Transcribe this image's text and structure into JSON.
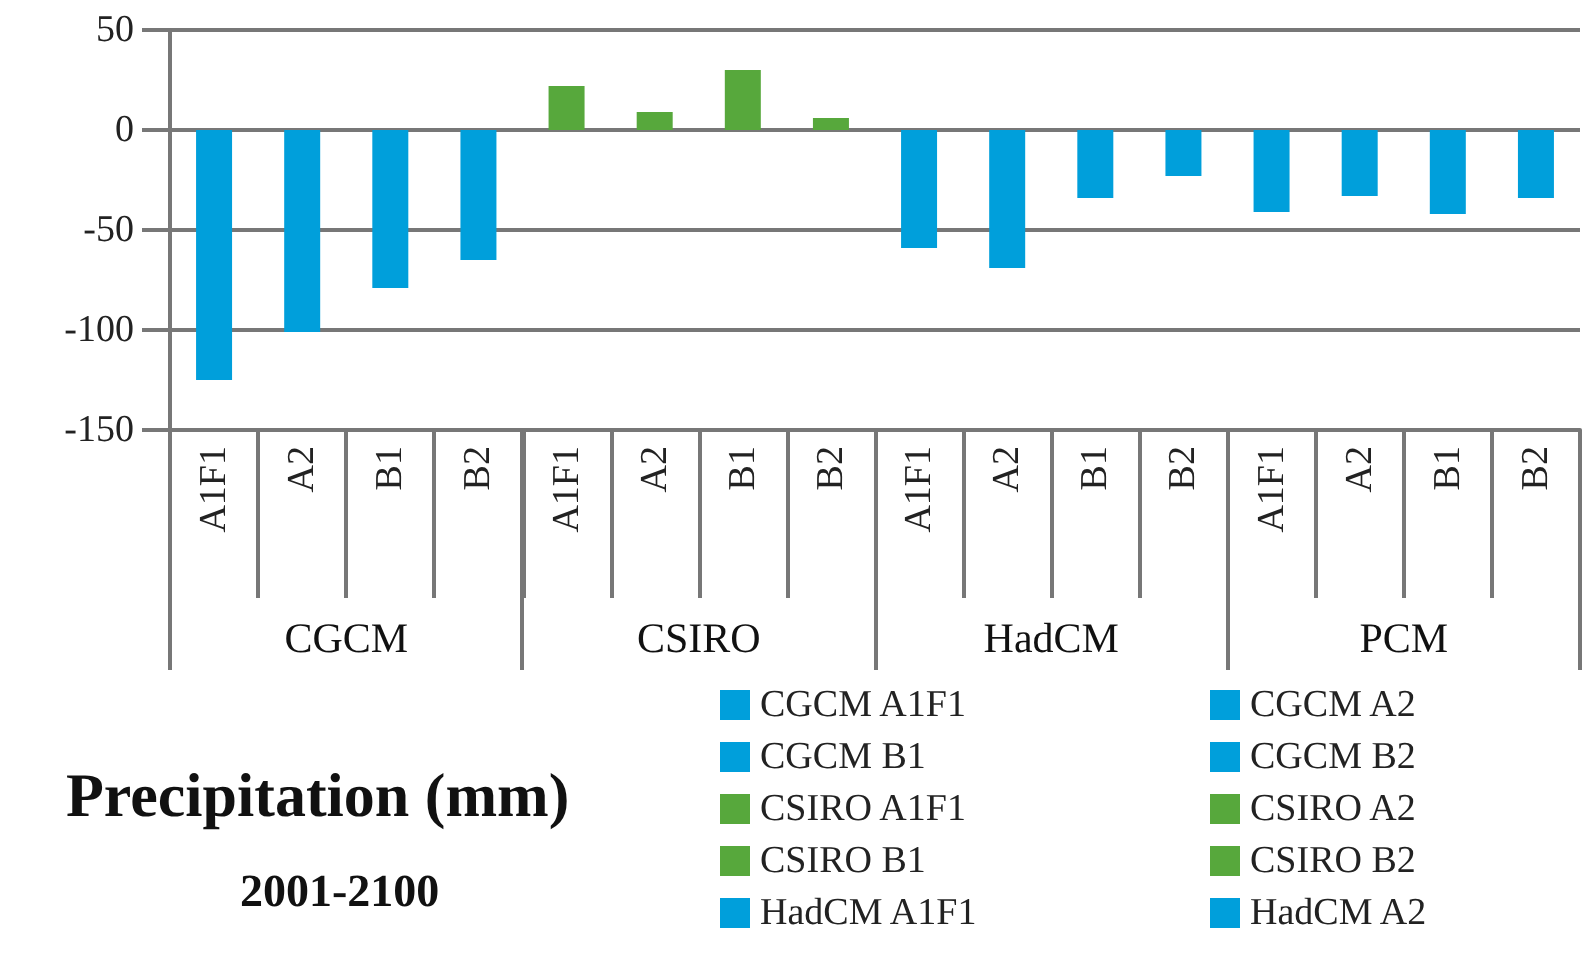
{
  "chart_data": {
    "type": "bar",
    "title": "Precipitation (mm)",
    "subtitle": "2001-2100",
    "categories": [
      "A1F1",
      "A2",
      "B1",
      "B2",
      "A1F1",
      "A2",
      "B1",
      "B2",
      "A1F1",
      "A2",
      "B1",
      "B2",
      "A1F1",
      "A2",
      "B1",
      "B2"
    ],
    "annotations": [
      "CGCM",
      "CSIRO",
      "HadCM",
      "PCM"
    ],
    "stacked": true,
    "series": [
      {
        "name": "CGCM A1F1",
        "color": "#009fdb",
        "values": [
          -125,
          null,
          null,
          null,
          null,
          null,
          null,
          null,
          null,
          null,
          null,
          null,
          null,
          null,
          null,
          null
        ]
      },
      {
        "name": "CGCM A2",
        "color": "#009fdb",
        "values": [
          null,
          -101,
          null,
          null,
          null,
          null,
          null,
          null,
          null,
          null,
          null,
          null,
          null,
          null,
          null,
          null
        ]
      },
      {
        "name": "CGCM B1",
        "color": "#009fdb",
        "values": [
          null,
          null,
          -79,
          null,
          null,
          null,
          null,
          null,
          null,
          null,
          null,
          null,
          null,
          null,
          null,
          null
        ]
      },
      {
        "name": "CGCM B2",
        "color": "#009fdb",
        "values": [
          null,
          null,
          null,
          -65,
          null,
          null,
          null,
          null,
          null,
          null,
          null,
          null,
          null,
          null,
          null,
          null
        ]
      },
      {
        "name": "CSIRO A1F1",
        "color": "#57a83c",
        "values": [
          null,
          null,
          null,
          null,
          22,
          null,
          null,
          null,
          null,
          null,
          null,
          null,
          null,
          null,
          null,
          null
        ]
      },
      {
        "name": "CSIRO A2",
        "color": "#57a83c",
        "values": [
          null,
          null,
          null,
          null,
          null,
          9,
          null,
          null,
          null,
          null,
          null,
          null,
          null,
          null,
          null,
          null
        ]
      },
      {
        "name": "CSIRO B1",
        "color": "#57a83c",
        "values": [
          null,
          null,
          null,
          null,
          null,
          null,
          30,
          null,
          null,
          null,
          null,
          null,
          null,
          null,
          null,
          null
        ]
      },
      {
        "name": "CSIRO B2",
        "color": "#57a83c",
        "values": [
          null,
          null,
          null,
          null,
          null,
          null,
          null,
          6,
          null,
          null,
          null,
          null,
          null,
          null,
          null,
          null
        ]
      },
      {
        "name": "HadCM A1F1",
        "color": "#009fdb",
        "values": [
          null,
          null,
          null,
          null,
          null,
          null,
          null,
          null,
          -59,
          null,
          null,
          null,
          null,
          null,
          null,
          null
        ]
      },
      {
        "name": "HadCM A2",
        "color": "#009fdb",
        "values": [
          null,
          null,
          null,
          null,
          null,
          null,
          null,
          null,
          null,
          -69,
          null,
          null,
          null,
          null,
          null,
          null
        ]
      },
      {
        "color": "#009fdb",
        "values": [
          null,
          null,
          null,
          null,
          null,
          null,
          null,
          null,
          null,
          null,
          -34,
          null,
          null,
          null,
          null,
          null
        ]
      },
      {
        "color": "#009fdb",
        "values": [
          null,
          null,
          null,
          null,
          null,
          null,
          null,
          null,
          null,
          null,
          null,
          -23,
          null,
          null,
          null,
          null
        ]
      },
      {
        "color": "#009fdb",
        "values": [
          null,
          null,
          null,
          null,
          null,
          null,
          null,
          null,
          null,
          null,
          null,
          null,
          -41,
          null,
          null,
          null
        ]
      },
      {
        "color": "#009fdb",
        "values": [
          null,
          null,
          null,
          null,
          null,
          null,
          null,
          null,
          null,
          null,
          null,
          null,
          null,
          -33,
          null,
          null
        ]
      },
      {
        "color": "#009fdb",
        "values": [
          null,
          null,
          null,
          null,
          null,
          null,
          null,
          null,
          null,
          null,
          null,
          null,
          null,
          null,
          -42,
          null
        ]
      },
      {
        "color": "#009fdb",
        "values": [
          null,
          null,
          null,
          null,
          null,
          null,
          null,
          null,
          null,
          null,
          null,
          null,
          null,
          null,
          null,
          -34
        ]
      }
    ],
    "ylim": [
      -150,
      50
    ],
    "yticks": [
      -150,
      -100,
      -50,
      0,
      50
    ],
    "grid": "y",
    "legend": "bottom right"
  }
}
